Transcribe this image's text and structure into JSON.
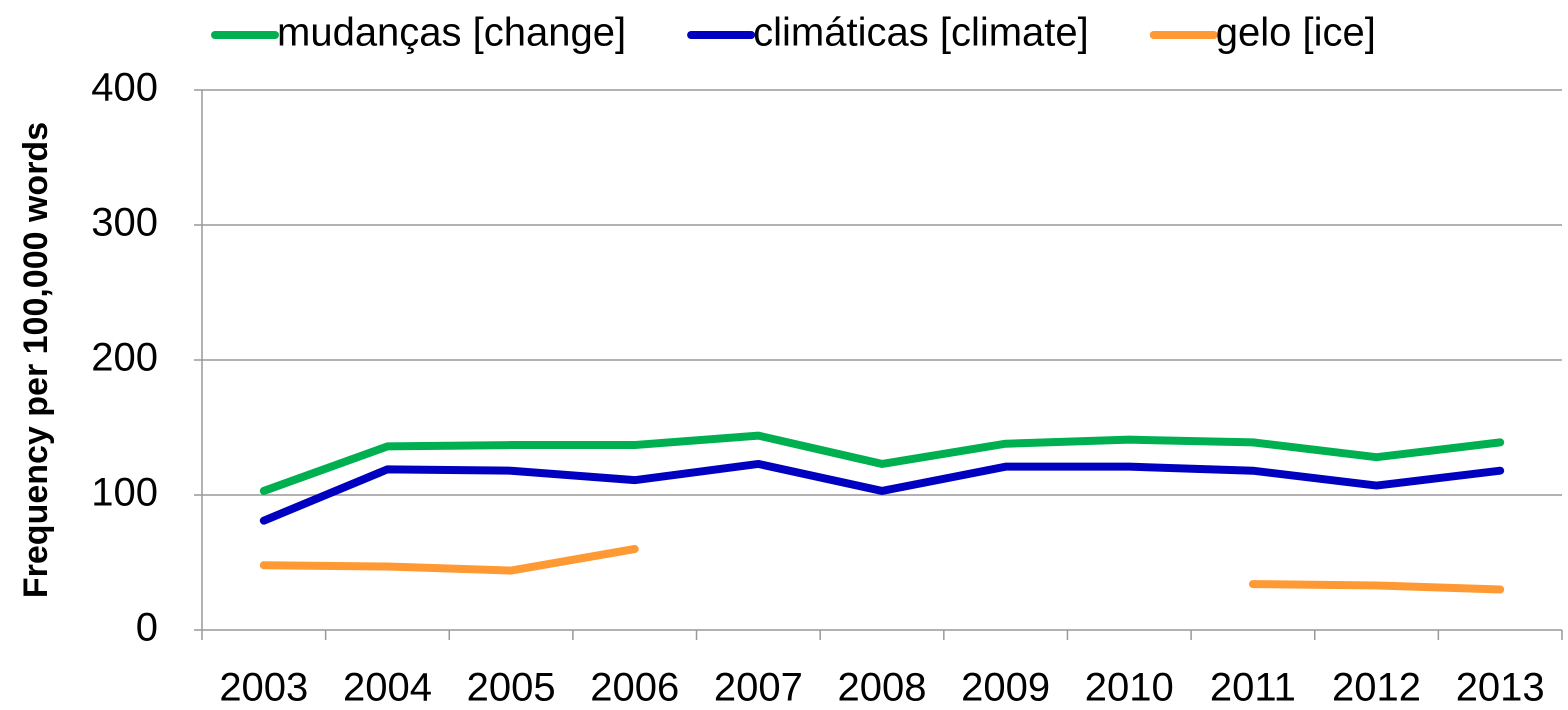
{
  "chart_data": {
    "type": "line",
    "y_label": "Frequency per 100,000 words",
    "categories": [
      "2003",
      "2004",
      "2005",
      "2006",
      "2007",
      "2008",
      "2009",
      "2010",
      "2011",
      "2012",
      "2013"
    ],
    "series": [
      {
        "name": "mudanças [change]",
        "color": "#00b050",
        "values": [
          103,
          136,
          137,
          137,
          144,
          123,
          138,
          141,
          139,
          128,
          139
        ]
      },
      {
        "name": "climáticas [climate]",
        "color": "#0000c0",
        "values": [
          81,
          119,
          118,
          111,
          123,
          103,
          121,
          121,
          118,
          107,
          118
        ]
      },
      {
        "name": "gelo [ice]",
        "color": "#ff9933",
        "values": [
          48,
          47,
          44,
          60,
          null,
          null,
          null,
          null,
          34,
          33,
          30
        ]
      }
    ],
    "ylim": [
      0,
      400
    ],
    "yticks": [
      0,
      100,
      200,
      300,
      400
    ],
    "grid": true,
    "legend": "top"
  }
}
